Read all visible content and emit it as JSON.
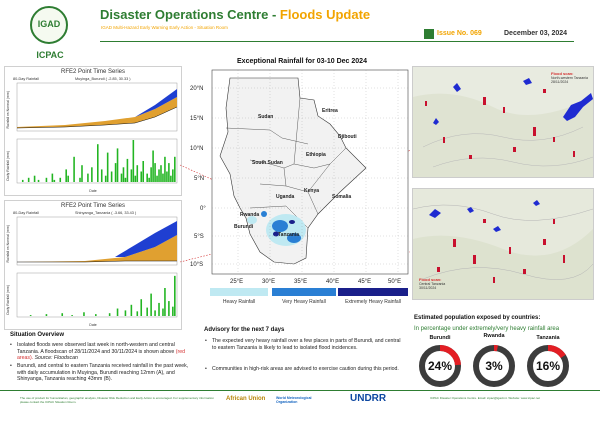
{
  "header": {
    "logo_text": "IGAD",
    "logo_label": "ICPAC",
    "title_part1": "Disaster Operations Centre - ",
    "title_part2": "Floods Update",
    "subtitle": "IGAD Multi-Hazard Early Warning Early Action - Situation Room",
    "issue": "Issue No. 069",
    "date": "December 03, 2024"
  },
  "panel_a": {
    "title": "RFE2 Point Time Series",
    "left_label": "80-Day Rainfall",
    "right_label": "Muyinga_Burundi ( -2.85, 30.33 )",
    "letter": "A",
    "ylabel_top": "Rainfall vs Normal (mm)",
    "ylabel_bottom": "Daily Rainfall (mm)",
    "xlabel": "Date"
  },
  "panel_b": {
    "title": "RFE2 Point Time Series",
    "left_label": "80-Day Rainfall",
    "right_label": "Shinyanga_Tanzania ( -3.66, 33.43 )",
    "letter": "B",
    "ylabel_top": "Rainfall vs Normal (mm)",
    "ylabel_bottom": "Daily Rainfall (mm)",
    "xlabel": "Date"
  },
  "chart_data": [
    {
      "type": "bar",
      "title": "RFE2 Point Time Series",
      "xlabel": "Date",
      "ylabel": "Daily Rainfall (mm)",
      "series": [
        {
          "name": "Muyinga_Burundi ( -2.85, 30.33 )",
          "values": [
            0,
            0,
            1,
            0,
            0,
            2,
            0,
            0,
            3,
            0,
            1,
            0,
            0,
            0,
            2,
            0,
            0,
            4,
            1,
            0,
            0,
            2,
            0,
            0,
            6,
            3,
            0,
            0,
            12,
            0,
            0,
            2,
            8,
            0,
            0,
            4,
            0,
            7,
            0,
            0,
            18,
            0,
            6,
            0,
            3,
            14,
            0,
            5,
            0,
            9,
            16,
            0,
            4,
            7,
            2,
            11,
            0,
            6,
            20,
            3,
            8,
            0,
            5,
            10,
            0,
            4,
            2,
            7,
            15,
            9,
            3,
            6,
            8,
            4,
            12,
            5,
            9,
            3,
            6,
            12
          ]
        }
      ],
      "ylim": [
        0,
        20
      ]
    },
    {
      "type": "bar",
      "title": "RFE2 Point Time Series",
      "xlabel": "Date",
      "ylabel": "Daily Rainfall (mm)",
      "series": [
        {
          "name": "Shinyanga_Tanzania ( -3.66, 33.43 )",
          "values": [
            0,
            0,
            0,
            0,
            0,
            0,
            1,
            0,
            0,
            0,
            0,
            0,
            0,
            0,
            2,
            0,
            0,
            0,
            0,
            0,
            0,
            0,
            3,
            0,
            0,
            0,
            0,
            1,
            0,
            0,
            0,
            0,
            0,
            4,
            0,
            0,
            0,
            0,
            0,
            2,
            0,
            0,
            0,
            0,
            0,
            0,
            3,
            0,
            0,
            0,
            8,
            0,
            0,
            0,
            6,
            0,
            0,
            12,
            0,
            0,
            5,
            0,
            18,
            0,
            0,
            9,
            0,
            24,
            0,
            6,
            0,
            14,
            0,
            8,
            30,
            0,
            16,
            0,
            10,
            43
          ]
        }
      ],
      "ylim": [
        0,
        45
      ]
    }
  ],
  "map": {
    "title": "Exceptional Rainfall for 03-10 Dec 2024",
    "lat_labels": [
      "20°N",
      "15°N",
      "10°N",
      "5°N",
      "0°",
      "5°S",
      "10°S"
    ],
    "lon_labels": [
      "25°E",
      "30°E",
      "35°E",
      "40°E",
      "45°E",
      "50°E"
    ],
    "countries": [
      "Sudan",
      "Eritrea",
      "Djibouti",
      "South Sudan",
      "Ethiopia",
      "Kenya",
      "Uganda",
      "Somalia",
      "Rwanda",
      "Burundi",
      "Tanzania"
    ],
    "legend": [
      {
        "label": "Heavy Rainfall",
        "color": "#bfe9f2"
      },
      {
        "label": "Very Heavy Rainfall",
        "color": "#2a7fd4"
      },
      {
        "label": "Extremely Heavy Rainfall",
        "color": "#1a1f8a"
      }
    ]
  },
  "flood_scans": [
    {
      "label": "Flood scan:",
      "place": "North-western Tanzania",
      "date": "28/11/2024"
    },
    {
      "label": "Flood scan:",
      "place": "Central Tanzania",
      "date": "30/11/2024"
    }
  ],
  "situation": {
    "title": "Situation Overview",
    "b1_pre": "Isolated floods were observed last week in north-western and central Tanzania. A floodscan of 28/11/2024 and 30/11/2024 is shown above ",
    "b1_red": "(red areas).",
    "b1_src": " Source: Floodscan",
    "b2": "Burundi, and central to eastern Tanzania received rainfall in the past week, with daily accumulation in Muyinga, Burundi reaching 12mm (A), and Shinyanga, Tanzania reaching 43mm (B)."
  },
  "advisory": {
    "title": "Advisory for the next 7 days",
    "b1": "The expected very heavy rainfall over a few places in parts of Burundi, and central to eastern Tanzania is likely to lead to isolated flood incidences.",
    "b2": "Communities in high-risk areas are advised to exercise caution during this period."
  },
  "population": {
    "title": "Estimated population exposed by countries:",
    "subtitle": "In percentage under extremely/very heavy rainfall area",
    "countries": [
      {
        "name": "Burundi",
        "pct": "24%",
        "value": 0.24
      },
      {
        "name": "Rwanda",
        "pct": "3%",
        "value": 0.03
      },
      {
        "name": "Tanzania",
        "pct": "16%",
        "value": 0.16
      }
    ]
  },
  "footer": {
    "left": "The use of product for humanitarian, geographic analysis, Disaster Risk Reduction and Early Action is encouraged. For supplementary information please contact the ICPAC Situation Room.",
    "right": "ICPAC Disaster Operations Centre. Email: icpac@igad.int. Website: www.icpac.net",
    "logos": [
      "African Union",
      "World Meteorological Organization",
      "UNDRR"
    ]
  },
  "colors": {
    "brand_green": "#2e7d32",
    "accent_orange": "#f2a400",
    "donut_red": "#e31e24",
    "donut_dark": "#3c3c3c"
  }
}
